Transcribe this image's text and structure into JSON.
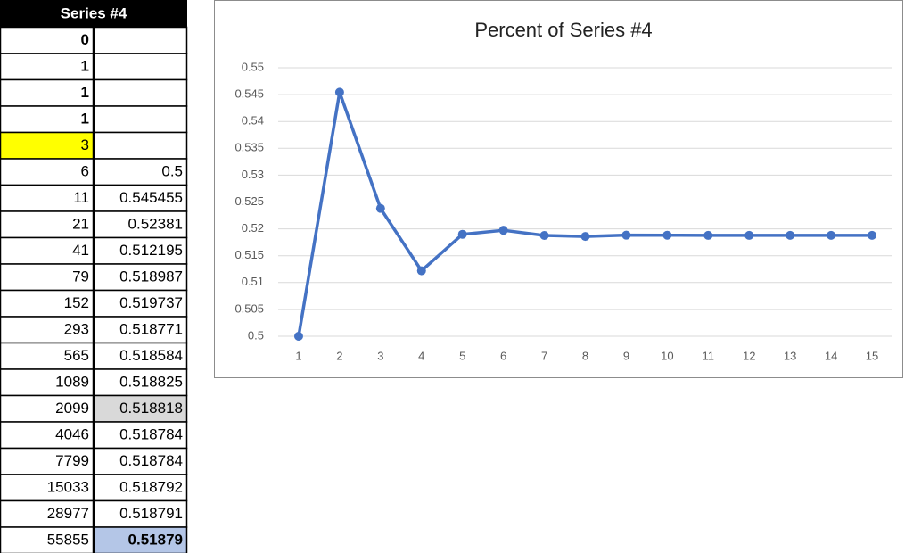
{
  "table": {
    "header": "Series #4",
    "rows": [
      [
        "0"
      ],
      [
        "1"
      ],
      [
        "1"
      ],
      [
        "1"
      ],
      [
        "3"
      ],
      [
        "6",
        "0.5"
      ],
      [
        "11",
        "0.545455"
      ],
      [
        "21",
        "0.52381"
      ],
      [
        "41",
        "0.512195"
      ],
      [
        "79",
        "0.518987"
      ],
      [
        "152",
        "0.519737"
      ],
      [
        "293",
        "0.518771"
      ],
      [
        "565",
        "0.518584"
      ],
      [
        "1089",
        "0.518825"
      ],
      [
        "2099",
        "0.518818"
      ],
      [
        "4046",
        "0.518784"
      ],
      [
        "7799",
        "0.518784"
      ],
      [
        "15033",
        "0.518792"
      ],
      [
        "28977",
        "0.518791"
      ],
      [
        "55855",
        "0.51879"
      ]
    ]
  },
  "chart_data": {
    "type": "line",
    "title": "Percent of Series #4",
    "categories": [
      "1",
      "2",
      "3",
      "4",
      "5",
      "6",
      "7",
      "8",
      "9",
      "10",
      "11",
      "12",
      "13",
      "14",
      "15"
    ],
    "values": [
      0.5,
      0.545455,
      0.52381,
      0.512195,
      0.518987,
      0.519737,
      0.518771,
      0.518584,
      0.518825,
      0.518818,
      0.518784,
      0.518784,
      0.518792,
      0.518791,
      0.51879
    ],
    "color": "#4472c4",
    "ylim": [
      0.5,
      0.55
    ],
    "yticks": [
      0.5,
      0.505,
      0.51,
      0.515,
      0.52,
      0.525,
      0.53,
      0.535,
      0.54,
      0.545,
      0.55
    ],
    "grid": true
  }
}
